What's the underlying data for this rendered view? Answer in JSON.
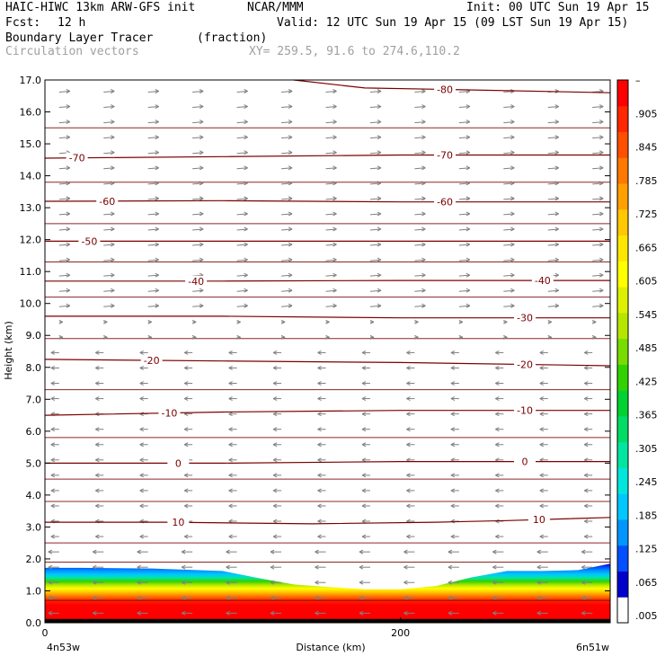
{
  "header": {
    "model": "HAIC-HIWC 13km ARW-GFS init",
    "center": "NCAR/MMM",
    "init": "Init: 00 UTC Sun 19 Apr 15",
    "fcst_label": "Fcst:",
    "fcst_value": "12 h",
    "valid": "Valid: 12 UTC Sun 19 Apr 15 (09 LST Sun 19 Apr 15)",
    "field1": "Boundary Layer Tracer",
    "field1_units": "(fraction)",
    "field2": "Circulation vectors",
    "xy": "XY= 259.5, 91.6 to 274.6,110.2"
  },
  "colors": {
    "contour": "#7a0000",
    "vector": "#808080",
    "colorbar": [
      "#ffffff",
      "#0000cd",
      "#0050ff",
      "#0096ff",
      "#00c8ff",
      "#00e6dc",
      "#00e6a0",
      "#00dc64",
      "#00d232",
      "#32d200",
      "#78dc00",
      "#b4e600",
      "#dcf000",
      "#ffff00",
      "#ffe600",
      "#ffc800",
      "#ffa000",
      "#ff7800",
      "#ff5000",
      "#ff2800",
      "#ff0000"
    ]
  },
  "chart_data": {
    "type": "heatmap",
    "title": "Boundary Layer Tracer",
    "xlabel": "Distance (km)",
    "ylabel": "Height (km)",
    "xlim": [
      0,
      318
    ],
    "ylim": [
      0,
      17
    ],
    "x_ticks": [
      {
        "value": 0,
        "label": "0"
      },
      {
        "value": 200,
        "label": "200"
      }
    ],
    "x_end_labels": {
      "left": "4n53w",
      "right": "6n51w"
    },
    "y_ticks": [
      "0.0",
      "1.0",
      "2.0",
      "3.0",
      "4.0",
      "5.0",
      "6.0",
      "7.0",
      "8.0",
      "9.0",
      "10.0",
      "11.0",
      "12.0",
      "13.0",
      "14.0",
      "15.0",
      "16.0",
      "17.0"
    ],
    "colorbar_labels": [
      ".005",
      ".065",
      ".125",
      ".185",
      ".245",
      ".305",
      ".365",
      ".425",
      ".485",
      ".545",
      ".605",
      ".665",
      ".725",
      ".785",
      ".845",
      ".905",
      "–"
    ],
    "tracer_top_km": [
      [
        0,
        1.72
      ],
      [
        20,
        1.72
      ],
      [
        60,
        1.7
      ],
      [
        100,
        1.62
      ],
      [
        120,
        1.4
      ],
      [
        140,
        1.2
      ],
      [
        160,
        1.12
      ],
      [
        180,
        1.05
      ],
      [
        200,
        1.05
      ],
      [
        220,
        1.15
      ],
      [
        240,
        1.42
      ],
      [
        260,
        1.62
      ],
      [
        280,
        1.62
      ],
      [
        300,
        1.65
      ],
      [
        318,
        1.85
      ]
    ],
    "temperature_contours": [
      {
        "label": "10",
        "points": [
          [
            0,
            3.15
          ],
          [
            70,
            3.15
          ],
          [
            150,
            3.1
          ],
          [
            220,
            3.15
          ],
          [
            260,
            3.2
          ],
          [
            318,
            3.3
          ]
        ],
        "label_x": [
          75,
          278
        ]
      },
      {
        "label": "0",
        "points": [
          [
            0,
            5.0
          ],
          [
            100,
            5.0
          ],
          [
            200,
            5.05
          ],
          [
            318,
            5.05
          ]
        ],
        "label_x": [
          75,
          270
        ]
      },
      {
        "label": "-10",
        "points": [
          [
            0,
            6.5
          ],
          [
            100,
            6.6
          ],
          [
            200,
            6.65
          ],
          [
            318,
            6.65
          ]
        ],
        "label_x": [
          70,
          270
        ]
      },
      {
        "label": "-20",
        "points": [
          [
            0,
            8.25
          ],
          [
            100,
            8.2
          ],
          [
            200,
            8.15
          ],
          [
            318,
            8.05
          ]
        ],
        "label_x": [
          60,
          270
        ]
      },
      {
        "label": "-30",
        "points": [
          [
            0,
            9.6
          ],
          [
            100,
            9.6
          ],
          [
            200,
            9.55
          ],
          [
            318,
            9.55
          ]
        ],
        "label_x": [
          270
        ]
      },
      {
        "label": "-40",
        "points": [
          [
            0,
            10.7
          ],
          [
            100,
            10.7
          ],
          [
            200,
            10.72
          ],
          [
            318,
            10.72
          ]
        ],
        "label_x": [
          85,
          280
        ]
      },
      {
        "label": "-50",
        "points": [
          [
            0,
            11.95
          ],
          [
            100,
            11.95
          ],
          [
            200,
            11.95
          ],
          [
            318,
            11.95
          ]
        ],
        "label_x": [
          25
        ]
      },
      {
        "label": "-60",
        "points": [
          [
            0,
            13.2
          ],
          [
            100,
            13.22
          ],
          [
            200,
            13.18
          ],
          [
            318,
            13.18
          ]
        ],
        "label_x": [
          35,
          225
        ]
      },
      {
        "label": "-70",
        "points": [
          [
            0,
            14.55
          ],
          [
            100,
            14.6
          ],
          [
            200,
            14.65
          ],
          [
            318,
            14.65
          ]
        ],
        "label_x": [
          18,
          225
        ]
      },
      {
        "label": "-80",
        "points": [
          [
            140,
            17.0
          ],
          [
            180,
            16.75
          ],
          [
            230,
            16.7
          ],
          [
            318,
            16.6
          ]
        ],
        "label_x": [
          225
        ]
      }
    ],
    "height_grid_km": [
      0.7,
      1.9,
      2.5,
      3.8,
      4.5,
      5.8,
      7.3,
      8.9,
      10.2,
      11.3,
      12.5,
      13.8,
      15.5
    ]
  }
}
